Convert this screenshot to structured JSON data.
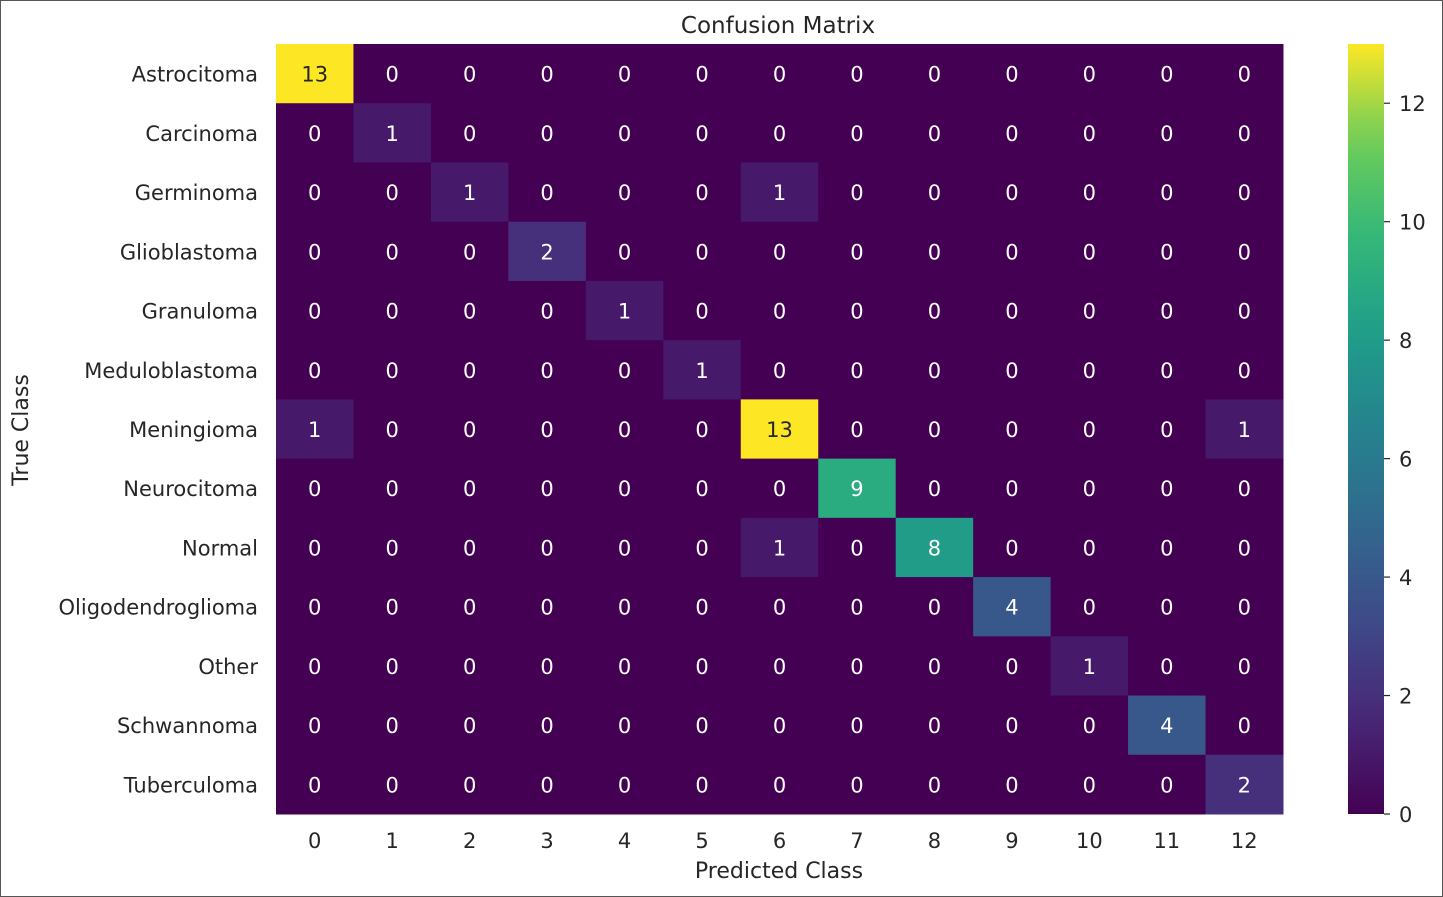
{
  "chart_data": {
    "type": "heatmap",
    "title": "Confusion Matrix",
    "xlabel": "Predicted Class",
    "ylabel": "True Class",
    "x_categories": [
      "0",
      "1",
      "2",
      "3",
      "4",
      "5",
      "6",
      "7",
      "8",
      "9",
      "10",
      "11",
      "12"
    ],
    "y_categories": [
      "Astrocitoma",
      "Carcinoma",
      "Germinoma",
      "Glioblastoma",
      "Granuloma",
      "Meduloblastoma",
      "Meningioma",
      "Neurocitoma",
      "Normal",
      "Oligodendroglioma",
      "Other",
      "Schwannoma",
      "Tuberculoma"
    ],
    "values": [
      [
        13,
        0,
        0,
        0,
        0,
        0,
        0,
        0,
        0,
        0,
        0,
        0,
        0
      ],
      [
        0,
        1,
        0,
        0,
        0,
        0,
        0,
        0,
        0,
        0,
        0,
        0,
        0
      ],
      [
        0,
        0,
        1,
        0,
        0,
        0,
        1,
        0,
        0,
        0,
        0,
        0,
        0
      ],
      [
        0,
        0,
        0,
        2,
        0,
        0,
        0,
        0,
        0,
        0,
        0,
        0,
        0
      ],
      [
        0,
        0,
        0,
        0,
        1,
        0,
        0,
        0,
        0,
        0,
        0,
        0,
        0
      ],
      [
        0,
        0,
        0,
        0,
        0,
        1,
        0,
        0,
        0,
        0,
        0,
        0,
        0
      ],
      [
        1,
        0,
        0,
        0,
        0,
        0,
        13,
        0,
        0,
        0,
        0,
        0,
        1
      ],
      [
        0,
        0,
        0,
        0,
        0,
        0,
        0,
        9,
        0,
        0,
        0,
        0,
        0
      ],
      [
        0,
        0,
        0,
        0,
        0,
        0,
        1,
        0,
        8,
        0,
        0,
        0,
        0
      ],
      [
        0,
        0,
        0,
        0,
        0,
        0,
        0,
        0,
        0,
        4,
        0,
        0,
        0
      ],
      [
        0,
        0,
        0,
        0,
        0,
        0,
        0,
        0,
        0,
        0,
        1,
        0,
        0
      ],
      [
        0,
        0,
        0,
        0,
        0,
        0,
        0,
        0,
        0,
        0,
        0,
        4,
        0
      ],
      [
        0,
        0,
        0,
        0,
        0,
        0,
        0,
        0,
        0,
        0,
        0,
        0,
        2
      ]
    ],
    "colorscale": "viridis",
    "vmin": 0,
    "vmax": 13,
    "colorbar_ticks": [
      0,
      2,
      4,
      6,
      8,
      10,
      12
    ],
    "annotations": true,
    "grid": false,
    "colors": {
      "low": "#440154",
      "high": "#fde725",
      "text_on_dark": "#ffffff",
      "text_on_light": "#262626"
    }
  }
}
